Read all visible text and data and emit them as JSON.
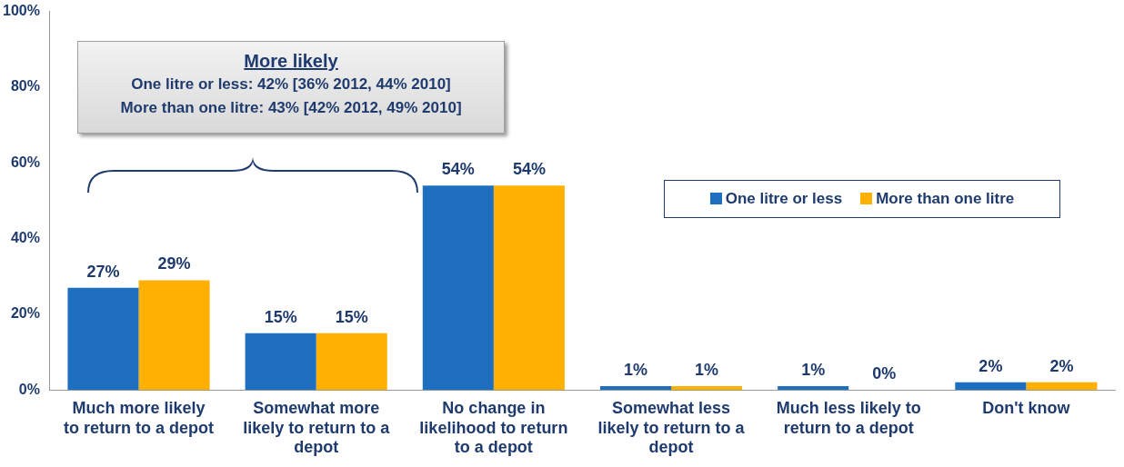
{
  "chart_data": {
    "type": "bar",
    "categories": [
      "Much more likely to return to a depot",
      "Somewhat more likely to return to a depot",
      "No change in likelihood to return to a depot",
      "Somewhat less likely to return to a depot",
      "Much less likely to return to a depot",
      "Don't know"
    ],
    "series": [
      {
        "name": "One litre or less",
        "color": "#1f6fc0",
        "values": [
          27,
          15,
          54,
          1,
          1,
          2
        ],
        "value_labels": [
          "27%",
          "15%",
          "54%",
          "1%",
          "1%",
          "2%"
        ]
      },
      {
        "name": "More than one litre",
        "color": "#ffb000",
        "values": [
          29,
          15,
          54,
          1,
          0,
          2
        ],
        "value_labels": [
          "29%",
          "15%",
          "54%",
          "1%",
          null,
          "2%"
        ]
      }
    ],
    "ylim": [
      0,
      100
    ],
    "yticks": [
      {
        "value": 0,
        "label": "0%"
      },
      {
        "value": 20,
        "label": "20%"
      },
      {
        "value": 40,
        "label": "40%"
      },
      {
        "value": 60,
        "label": "60%"
      },
      {
        "value": 80,
        "label": "80%"
      },
      {
        "value": 100,
        "label": "100%"
      }
    ],
    "grid": false,
    "legend": "right",
    "annotations": [
      "More likely",
      "One litre or less: 42% [36% 2012, 44% 2010]",
      "More than one litre: 43% [42% 2012, 49% 2010]",
      {
        "text": "0%",
        "x": "Much less likely to return to a depot",
        "y": 0
      }
    ]
  }
}
